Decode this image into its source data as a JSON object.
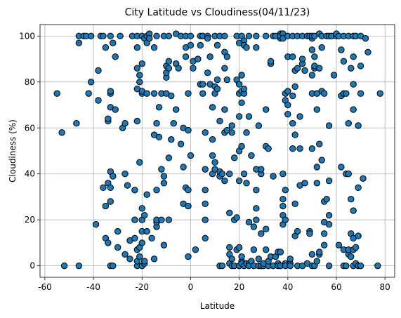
{
  "chart_data": {
    "type": "scatter",
    "title": "City Latitude vs Cloudiness(04/11/23)",
    "xlabel": "Latitude",
    "ylabel": "Cloudiness (%)",
    "xlim": [
      -62,
      84
    ],
    "ylim": [
      -5,
      105
    ],
    "x_ticks": [
      -60,
      -40,
      -20,
      0,
      20,
      40,
      60,
      80
    ],
    "y_ticks": [
      0,
      20,
      40,
      60,
      80,
      100
    ],
    "grid": true,
    "marker_color": "#1f77b4",
    "marker_edge_color": "#000000",
    "points": [
      [
        -55,
        75
      ],
      [
        -53,
        58
      ],
      [
        -52,
        0
      ],
      [
        -47,
        62
      ],
      [
        -46,
        0
      ],
      [
        -46,
        97
      ],
      [
        -46,
        100
      ],
      [
        -44,
        100
      ],
      [
        -43,
        100
      ],
      [
        -42,
        75
      ],
      [
        -41,
        80
      ],
      [
        -41,
        100
      ],
      [
        -39,
        18
      ],
      [
        -38,
        85
      ],
      [
        -38,
        72
      ],
      [
        -37,
        100
      ],
      [
        -36,
        100
      ],
      [
        -36,
        34
      ],
      [
        -35,
        26
      ],
      [
        -35,
        95
      ],
      [
        -35,
        12
      ],
      [
        -34,
        10
      ],
      [
        -34,
        63
      ],
      [
        -34,
        64
      ],
      [
        -34,
        36
      ],
      [
        -33,
        75
      ],
      [
        -33,
        76
      ],
      [
        -33,
        41
      ],
      [
        -33,
        100
      ],
      [
        -33,
        69
      ],
      [
        -33,
        34
      ],
      [
        -33,
        28
      ],
      [
        -33,
        0
      ],
      [
        -32,
        97
      ],
      [
        -32,
        39
      ],
      [
        -32,
        0
      ],
      [
        -31,
        91
      ],
      [
        -31,
        68
      ],
      [
        -30,
        8
      ],
      [
        -30,
        15
      ],
      [
        -29,
        100
      ],
      [
        -28,
        60
      ],
      [
        -27,
        62
      ],
      [
        -27,
        40
      ],
      [
        -27,
        5
      ],
      [
        -26,
        35
      ],
      [
        -25,
        11
      ],
      [
        -25,
        3
      ],
      [
        -24,
        100
      ],
      [
        -23,
        33
      ],
      [
        -23,
        12
      ],
      [
        -23,
        20
      ],
      [
        -22,
        63
      ],
      [
        -22,
        77
      ],
      [
        -22,
        86
      ],
      [
        -22,
        95
      ],
      [
        -22,
        100
      ],
      [
        -22,
        0
      ],
      [
        -22,
        7
      ],
      [
        -22,
        2
      ],
      [
        -21,
        4
      ],
      [
        -21,
        8
      ],
      [
        -21,
        45
      ],
      [
        -21,
        80
      ],
      [
        -21,
        83
      ],
      [
        -20,
        0
      ],
      [
        -20,
        10
      ],
      [
        -20,
        15
      ],
      [
        -20,
        20
      ],
      [
        -20,
        25
      ],
      [
        -20,
        75
      ],
      [
        -20,
        88
      ],
      [
        -20,
        100
      ],
      [
        -20,
        76
      ],
      [
        -19,
        99
      ],
      [
        -19,
        1
      ],
      [
        -19,
        2
      ],
      [
        -19,
        22
      ],
      [
        -18,
        75
      ],
      [
        -18,
        100
      ],
      [
        -18,
        97
      ],
      [
        -18,
        15
      ],
      [
        -18,
        31
      ],
      [
        -17,
        101
      ],
      [
        -17,
        99
      ],
      [
        -16,
        12
      ],
      [
        -15,
        3
      ],
      [
        -15,
        57
      ],
      [
        -15,
        75
      ],
      [
        -15,
        95
      ],
      [
        -14,
        100
      ],
      [
        -14,
        33
      ],
      [
        -14,
        17
      ],
      [
        -14,
        19
      ],
      [
        -14,
        62
      ],
      [
        -14,
        20
      ],
      [
        -13,
        69
      ],
      [
        -13,
        56
      ],
      [
        -12,
        75
      ],
      [
        -12,
        42
      ],
      [
        -12,
        20
      ],
      [
        -11,
        100
      ],
      [
        -11,
        9
      ],
      [
        -11,
        39
      ],
      [
        -11,
        36
      ],
      [
        -10,
        75
      ],
      [
        -10,
        82
      ],
      [
        -10,
        84
      ],
      [
        -10,
        87
      ],
      [
        -9,
        86
      ],
      [
        -9,
        89
      ],
      [
        -9,
        20
      ],
      [
        -9,
        47
      ],
      [
        -9,
        100
      ],
      [
        -8,
        55
      ],
      [
        -8,
        74
      ],
      [
        -7,
        62
      ],
      [
        -6,
        101
      ],
      [
        -6,
        68
      ],
      [
        -6,
        88
      ],
      [
        -5,
        86
      ],
      [
        -4,
        53
      ],
      [
        -4,
        100
      ],
      [
        -3,
        60
      ],
      [
        -3,
        43
      ],
      [
        -3,
        27
      ],
      [
        -2,
        34
      ],
      [
        -2,
        100
      ],
      [
        -2,
        91
      ],
      [
        -2,
        95
      ],
      [
        -1,
        26
      ],
      [
        -1,
        33
      ],
      [
        -1,
        75
      ],
      [
        -1,
        4
      ],
      [
        -1,
        59
      ],
      [
        0,
        48
      ],
      [
        0,
        100
      ],
      [
        0,
        96
      ],
      [
        1,
        89
      ],
      [
        1,
        86
      ],
      [
        2,
        7
      ],
      [
        3,
        90
      ],
      [
        4,
        79
      ],
      [
        4,
        96
      ],
      [
        4,
        100
      ],
      [
        5,
        75
      ],
      [
        5,
        79
      ],
      [
        5,
        100
      ],
      [
        5,
        100
      ],
      [
        6,
        12
      ],
      [
        6,
        20
      ],
      [
        6,
        27
      ],
      [
        6,
        33
      ],
      [
        6,
        42
      ],
      [
        6,
        58
      ],
      [
        7,
        100
      ],
      [
        7,
        84
      ],
      [
        7,
        99
      ],
      [
        8,
        79
      ],
      [
        8,
        91
      ],
      [
        9,
        48
      ],
      [
        9,
        69
      ],
      [
        9,
        55
      ],
      [
        9,
        40
      ],
      [
        10,
        78
      ],
      [
        10,
        100
      ],
      [
        10,
        45
      ],
      [
        10,
        75
      ],
      [
        10,
        42
      ],
      [
        11,
        96
      ],
      [
        11,
        77
      ],
      [
        11,
        81
      ],
      [
        12,
        0
      ],
      [
        12,
        39
      ],
      [
        12,
        41
      ],
      [
        12,
        63
      ],
      [
        12,
        100
      ],
      [
        13,
        40
      ],
      [
        13,
        0
      ],
      [
        14,
        37
      ],
      [
        14,
        58
      ],
      [
        14,
        68
      ],
      [
        14,
        86
      ],
      [
        14,
        93
      ],
      [
        14,
        100
      ],
      [
        15,
        81
      ],
      [
        15,
        59
      ],
      [
        15,
        91
      ],
      [
        16,
        1
      ],
      [
        16,
        23
      ],
      [
        16,
        8
      ],
      [
        16,
        5
      ],
      [
        16,
        40
      ],
      [
        17,
        3
      ],
      [
        17,
        61
      ],
      [
        17,
        58
      ],
      [
        17,
        0
      ],
      [
        18,
        47
      ],
      [
        18,
        20
      ],
      [
        18,
        0
      ],
      [
        19,
        21
      ],
      [
        19,
        7
      ],
      [
        19,
        81
      ],
      [
        19,
        100
      ],
      [
        20,
        0
      ],
      [
        20,
        8
      ],
      [
        20,
        37
      ],
      [
        20,
        50
      ],
      [
        20,
        65
      ],
      [
        20,
        75
      ],
      [
        20,
        79
      ],
      [
        20,
        97
      ],
      [
        21,
        2
      ],
      [
        21,
        4
      ],
      [
        21,
        1
      ],
      [
        21,
        52
      ],
      [
        21,
        83
      ],
      [
        21,
        76
      ],
      [
        21,
        71
      ],
      [
        21,
        100
      ],
      [
        22,
        0
      ],
      [
        22,
        40
      ],
      [
        22,
        75
      ],
      [
        22,
        98
      ],
      [
        22,
        96
      ],
      [
        22,
        77
      ],
      [
        23,
        1
      ],
      [
        23,
        36
      ],
      [
        23,
        58
      ],
      [
        23,
        95
      ],
      [
        24,
        1
      ],
      [
        24,
        0
      ],
      [
        24,
        65
      ],
      [
        24,
        100
      ],
      [
        24,
        19
      ],
      [
        25,
        2
      ],
      [
        25,
        48
      ],
      [
        26,
        0
      ],
      [
        26,
        17
      ],
      [
        26,
        7
      ],
      [
        27,
        100
      ],
      [
        27,
        20
      ],
      [
        27,
        25
      ],
      [
        27,
        95
      ],
      [
        27,
        42
      ],
      [
        27,
        33
      ],
      [
        28,
        0
      ],
      [
        28,
        61
      ],
      [
        28,
        3
      ],
      [
        29,
        0
      ],
      [
        29,
        40
      ],
      [
        29,
        42
      ],
      [
        29,
        14
      ],
      [
        29,
        0
      ],
      [
        30,
        0
      ],
      [
        30,
        1
      ],
      [
        31,
        100
      ],
      [
        31,
        68
      ],
      [
        31,
        52
      ],
      [
        31,
        16
      ],
      [
        31,
        7
      ],
      [
        32,
        0
      ],
      [
        32,
        2
      ],
      [
        32,
        51
      ],
      [
        33,
        4
      ],
      [
        33,
        88
      ],
      [
        33,
        89
      ],
      [
        34,
        0
      ],
      [
        34,
        39
      ],
      [
        34,
        100
      ],
      [
        35,
        100
      ],
      [
        35,
        4
      ],
      [
        36,
        6
      ],
      [
        36,
        1
      ],
      [
        36,
        0
      ],
      [
        37,
        101
      ],
      [
        37,
        99
      ],
      [
        37,
        100
      ],
      [
        37,
        6
      ],
      [
        37,
        0
      ],
      [
        38,
        18
      ],
      [
        38,
        22
      ],
      [
        38,
        26
      ],
      [
        38,
        29
      ],
      [
        38,
        40
      ],
      [
        38,
        101
      ],
      [
        38,
        99
      ],
      [
        39,
        33
      ],
      [
        39,
        20
      ],
      [
        39,
        1
      ],
      [
        39,
        0
      ],
      [
        39,
        72
      ],
      [
        39,
        75
      ],
      [
        40,
        76
      ],
      [
        40,
        70
      ],
      [
        40,
        66
      ],
      [
        40,
        91
      ],
      [
        40,
        100
      ],
      [
        41,
        1
      ],
      [
        41,
        3
      ],
      [
        41,
        0
      ],
      [
        42,
        91
      ],
      [
        42,
        74
      ],
      [
        42,
        62
      ],
      [
        42,
        100
      ],
      [
        42,
        51
      ],
      [
        43,
        27
      ],
      [
        43,
        13
      ],
      [
        43,
        57
      ],
      [
        43,
        78
      ],
      [
        43,
        85
      ],
      [
        44,
        100
      ],
      [
        44,
        86
      ],
      [
        44,
        0
      ],
      [
        44,
        15
      ],
      [
        45,
        35
      ],
      [
        45,
        51
      ],
      [
        45,
        65
      ],
      [
        46,
        88
      ],
      [
        46,
        0
      ],
      [
        46,
        90
      ],
      [
        46,
        100
      ],
      [
        47,
        36
      ],
      [
        47,
        85
      ],
      [
        48,
        1
      ],
      [
        48,
        100
      ],
      [
        49,
        15
      ],
      [
        49,
        14
      ],
      [
        49,
        100
      ],
      [
        50,
        0
      ],
      [
        50,
        5
      ],
      [
        50,
        51
      ],
      [
        50,
        75
      ],
      [
        50,
        83
      ],
      [
        50,
        94
      ],
      [
        50,
        99
      ],
      [
        50,
        100
      ],
      [
        51,
        91
      ],
      [
        51,
        86
      ],
      [
        51,
        87
      ],
      [
        51,
        100
      ],
      [
        51,
        0
      ],
      [
        52,
        2
      ],
      [
        52,
        36
      ],
      [
        52,
        43
      ],
      [
        52,
        75
      ],
      [
        52,
        68
      ],
      [
        53,
        101
      ],
      [
        53,
        5
      ],
      [
        53,
        6
      ],
      [
        53,
        53
      ],
      [
        53,
        86
      ],
      [
        54,
        46
      ],
      [
        54,
        95
      ],
      [
        54,
        100
      ],
      [
        54,
        76
      ],
      [
        55,
        9
      ],
      [
        55,
        14
      ],
      [
        55,
        19
      ],
      [
        55,
        28
      ],
      [
        55,
        75
      ],
      [
        56,
        100
      ],
      [
        56,
        29
      ],
      [
        57,
        0
      ],
      [
        57,
        18
      ],
      [
        57,
        22
      ],
      [
        57,
        37
      ],
      [
        57,
        61
      ],
      [
        57,
        100
      ],
      [
        58,
        100
      ],
      [
        58,
        100
      ],
      [
        59,
        83
      ],
      [
        60,
        100
      ],
      [
        60,
        101
      ],
      [
        61,
        9
      ],
      [
        61,
        100
      ],
      [
        62,
        43
      ],
      [
        62,
        74
      ],
      [
        62,
        94
      ],
      [
        63,
        75
      ],
      [
        63,
        89
      ],
      [
        63,
        0
      ],
      [
        63,
        7
      ],
      [
        63,
        100
      ],
      [
        64,
        0
      ],
      [
        64,
        40
      ],
      [
        64,
        75
      ],
      [
        65,
        5
      ],
      [
        65,
        7
      ],
      [
        65,
        40
      ],
      [
        65,
        62
      ],
      [
        65,
        100
      ],
      [
        66,
        4
      ],
      [
        66,
        14
      ],
      [
        66,
        29
      ],
      [
        66,
        86
      ],
      [
        67,
        0
      ],
      [
        67,
        7
      ],
      [
        67,
        12
      ],
      [
        67,
        24
      ],
      [
        67,
        68
      ],
      [
        67,
        79
      ],
      [
        67,
        91
      ],
      [
        67,
        100
      ],
      [
        68,
        1
      ],
      [
        68,
        8
      ],
      [
        68,
        100
      ],
      [
        69,
        0
      ],
      [
        69,
        13
      ],
      [
        69,
        34
      ],
      [
        69,
        61
      ],
      [
        70,
        0
      ],
      [
        70,
        75
      ],
      [
        70,
        87
      ],
      [
        70,
        100
      ],
      [
        71,
        38
      ],
      [
        72,
        99
      ],
      [
        73,
        93
      ],
      [
        77,
        0
      ],
      [
        78,
        75
      ]
    ]
  }
}
